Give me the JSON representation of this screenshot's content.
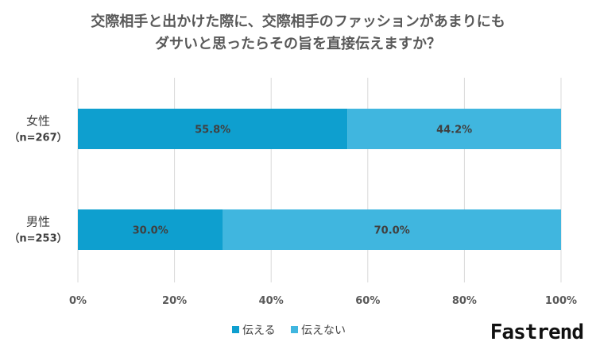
{
  "chart_data": {
    "type": "bar",
    "orientation": "horizontal",
    "stacked": true,
    "title_lines": [
      "交際相手と出かけた際に、交際相手のファッションがあまりにも",
      "ダサいと思ったらその旨を直接伝えますか？"
    ],
    "categories": [
      {
        "name": "女性",
        "n": "（n=267）"
      },
      {
        "name": "男性",
        "n": "（n=253）"
      }
    ],
    "series": [
      {
        "name": "伝える",
        "values": [
          55.8,
          30.0
        ],
        "labels": [
          "55.8%",
          "30.0%"
        ],
        "color": "#0e9fcf"
      },
      {
        "name": "伝えない",
        "values": [
          44.2,
          70.0
        ],
        "labels": [
          "44.2%",
          "70.0%"
        ],
        "color": "#40b6df"
      }
    ],
    "xlim": [
      0,
      100
    ],
    "xticks": [
      "0%",
      "20%",
      "40%",
      "60%",
      "80%",
      "100%"
    ],
    "grid": true,
    "legend_position": "bottom"
  },
  "brand": "Fastrend"
}
